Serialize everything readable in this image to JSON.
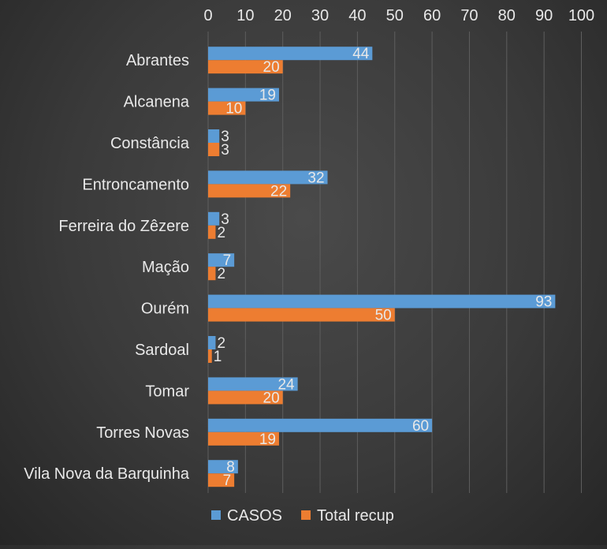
{
  "chart_data": {
    "type": "bar",
    "orientation": "horizontal",
    "title": "",
    "xlabel": "",
    "ylabel": "",
    "xlim": [
      0,
      100
    ],
    "x_ticks": [
      0,
      10,
      20,
      30,
      40,
      50,
      60,
      70,
      80,
      90,
      100
    ],
    "x_axis_position": "top",
    "grid": true,
    "legend_position": "bottom",
    "categories": [
      "Abrantes",
      "Alcanena",
      "Constância",
      "Entroncamento",
      "Ferreira do Zêzere",
      "Mação",
      "Ourém",
      "Sardoal",
      "Tomar",
      "Torres Novas",
      "Vila Nova da Barquinha"
    ],
    "series": [
      {
        "name": "CASOS",
        "color": "#5b9bd5",
        "values": [
          44,
          19,
          3,
          32,
          3,
          7,
          93,
          2,
          24,
          60,
          8
        ]
      },
      {
        "name": "Total recup",
        "color": "#ed7d31",
        "values": [
          20,
          10,
          3,
          22,
          2,
          2,
          50,
          1,
          20,
          19,
          7
        ]
      }
    ],
    "colors": {
      "label": "#e8e8e8",
      "grid": "#5e5e5e",
      "background": "#3a3a3a"
    }
  }
}
